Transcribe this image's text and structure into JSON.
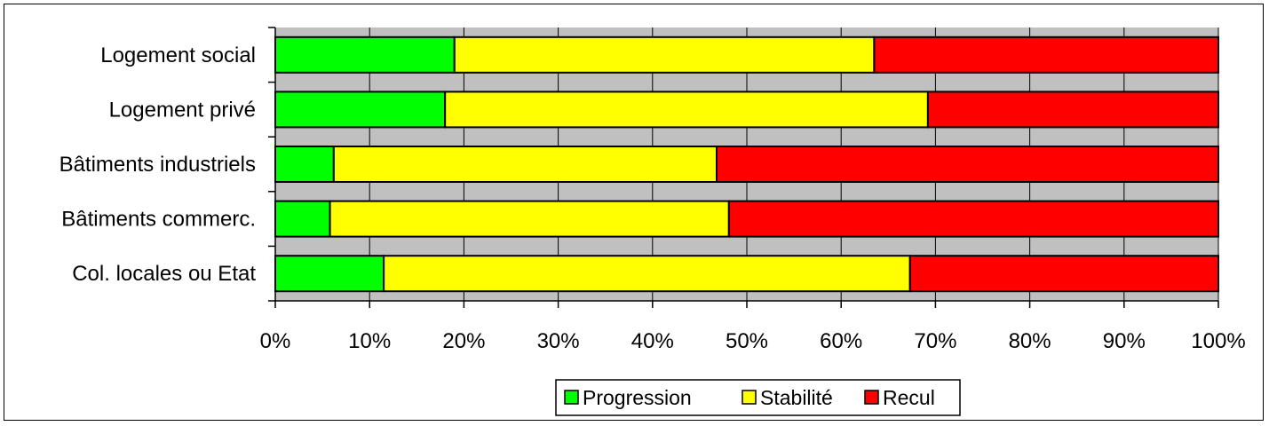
{
  "chart_data": {
    "type": "bar",
    "orientation": "horizontal",
    "stacked": "percent",
    "categories": [
      "Logement social",
      "Logement privé",
      "Bâtiments industriels",
      "Bâtiments commerc.",
      "Col. locales ou Etat"
    ],
    "series": [
      {
        "name": "Progression",
        "color": "#00ff00",
        "values": [
          19,
          18,
          6.2,
          5.8,
          11.5
        ]
      },
      {
        "name": "Stabilité",
        "color": "#ffff00",
        "values": [
          44.5,
          51.2,
          40.6,
          42.3,
          55.8
        ]
      },
      {
        "name": "Recul",
        "color": "#ff0000",
        "values": [
          36.5,
          30.8,
          53.2,
          51.9,
          32.7
        ]
      }
    ],
    "xticks": [
      "0%",
      "10%",
      "20%",
      "30%",
      "40%",
      "50%",
      "60%",
      "70%",
      "80%",
      "90%",
      "100%"
    ],
    "xlim": [
      0,
      100
    ],
    "grid": true,
    "plot_background": "#c0c0c0",
    "legend_position": "bottom"
  }
}
